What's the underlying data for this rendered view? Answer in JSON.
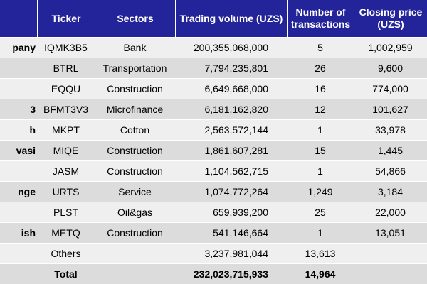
{
  "headers": {
    "company": "",
    "ticker": "Ticker",
    "sectors": "Sectors",
    "volume": "Trading volume (UZS)",
    "transactions": "Number of transactions",
    "closing": "Closing price (UZS)"
  },
  "rows": [
    {
      "company": "pany",
      "ticker": "IQMK3B5",
      "sector": "Bank",
      "volume": "200,355,068,000",
      "transactions": "5",
      "closing": "1,002,959"
    },
    {
      "company": "",
      "ticker": "BTRL",
      "sector": "Transportation",
      "volume": "7,794,235,801",
      "transactions": "26",
      "closing": "9,600"
    },
    {
      "company": "",
      "ticker": "EQQU",
      "sector": "Construction",
      "volume": "6,649,668,000",
      "transactions": "16",
      "closing": "774,000"
    },
    {
      "company": "3",
      "ticker": "BFMT3V3",
      "sector": "Microfinance",
      "volume": "6,181,162,820",
      "transactions": "12",
      "closing": "101,627"
    },
    {
      "company": "h",
      "ticker": "MKPT",
      "sector": "Cotton",
      "volume": "2,563,572,144",
      "transactions": "1",
      "closing": "33,978"
    },
    {
      "company": "vasi",
      "ticker": "MIQE",
      "sector": "Construction",
      "volume": "1,861,607,281",
      "transactions": "15",
      "closing": "1,445"
    },
    {
      "company": "",
      "ticker": "JASM",
      "sector": "Construction",
      "volume": "1,104,562,715",
      "transactions": "1",
      "closing": "54,866"
    },
    {
      "company": "nge",
      "ticker": "URTS",
      "sector": "Service",
      "volume": "1,074,772,264",
      "transactions": "1,249",
      "closing": "3,184"
    },
    {
      "company": "",
      "ticker": "PLST",
      "sector": "Oil&gas",
      "volume": "659,939,200",
      "transactions": "25",
      "closing": "22,000"
    },
    {
      "company": "ish",
      "ticker": "METQ",
      "sector": "Construction",
      "volume": "541,146,664",
      "transactions": "1",
      "closing": "13,051"
    },
    {
      "company": "",
      "ticker": "Others",
      "sector": "",
      "volume": "3,237,981,044",
      "transactions": "13,613",
      "closing": ""
    },
    {
      "company": "",
      "ticker": "Total",
      "sector": "",
      "volume": "232,023,715,933",
      "transactions": "14,964",
      "closing": ""
    }
  ],
  "colors": {
    "header_bg": "#24249a",
    "header_text": "#ffffff",
    "row_light": "#efefef",
    "row_dark": "#dcdcdc"
  }
}
